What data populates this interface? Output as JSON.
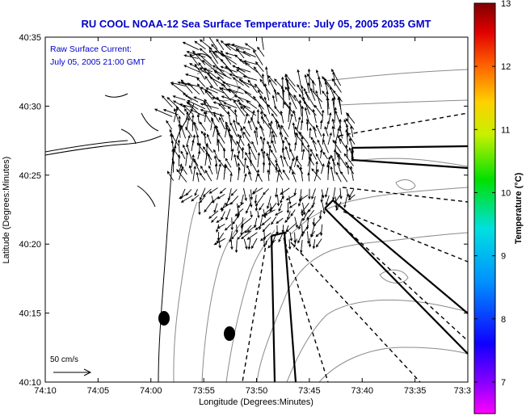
{
  "chart_data": {
    "type": "vector-field-map",
    "title": "RU COOL  NOAA-12  Sea Surface Temperature:  July 05, 2005 2035 GMT",
    "xlabel": "Longitude (Degrees:Minutes)",
    "ylabel": "Latitude (Degrees:Minutes)",
    "x_tick_labels": [
      "74:10",
      "74:05",
      "74:00",
      "73:55",
      "73:50",
      "73:45",
      "73:40",
      "73:35",
      "73:3"
    ],
    "y_tick_labels": [
      "40:10",
      "40:15",
      "40:20",
      "40:25",
      "40:30",
      "40:35"
    ],
    "annotation_line1": "Raw Surface Current:",
    "annotation_line2": "July 05, 2005 21:00 GMT",
    "scale_label": "50 cm/s",
    "colorbar": {
      "label": "Temperature (°C)",
      "min": 6.5,
      "max": 13,
      "tick_labels": [
        "13",
        "12",
        "11",
        "10",
        "9",
        "8",
        "7"
      ],
      "tick_values": [
        13,
        12,
        11,
        10,
        9,
        8,
        7
      ]
    }
  },
  "colors": {
    "title": "#0000c8",
    "annotation": "#0000c8",
    "coastline": "#000000",
    "contour": "#8a8a8a",
    "arrows": "#000000"
  }
}
